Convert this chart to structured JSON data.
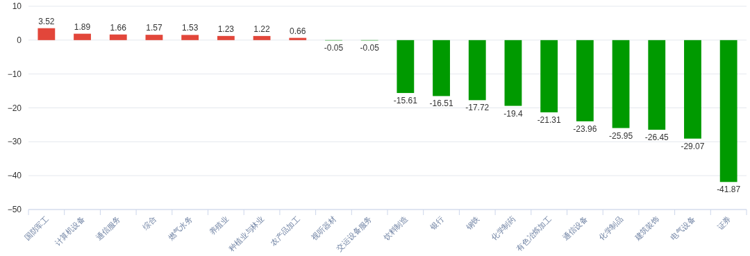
{
  "chart_data": {
    "type": "bar",
    "categories": [
      "国防军工",
      "计算机设备",
      "通信服务",
      "综合",
      "燃气水务",
      "养殖业",
      "种植业与林业",
      "农产品加工",
      "视听器材",
      "交运设备服务",
      "饮料制造",
      "银行",
      "钢铁",
      "化学制药",
      "有色冶炼加工",
      "通信设备",
      "化学制品",
      "建筑装饰",
      "电气设备",
      "证券"
    ],
    "values": [
      3.52,
      1.89,
      1.66,
      1.57,
      1.53,
      1.23,
      1.22,
      0.66,
      -0.05,
      -0.05,
      -15.61,
      -16.51,
      -17.72,
      -19.4,
      -21.31,
      -23.96,
      -25.95,
      -26.45,
      -29.07,
      -41.87
    ],
    "colors": [
      "#e2463a",
      "#e2463a",
      "#e2463a",
      "#e2463a",
      "#e2463a",
      "#e2463a",
      "#e2463a",
      "#e2463a",
      "#009a00",
      "#009a00",
      "#009a00",
      "#009a00",
      "#009a00",
      "#009a00",
      "#009a00",
      "#009a00",
      "#009a00",
      "#009a00",
      "#009a00",
      "#009a00"
    ],
    "ylim": [
      -50,
      10
    ],
    "yticks": [
      10,
      0,
      -10,
      -20,
      -30,
      -40,
      -50
    ],
    "grid": "y",
    "data_labels": true
  }
}
